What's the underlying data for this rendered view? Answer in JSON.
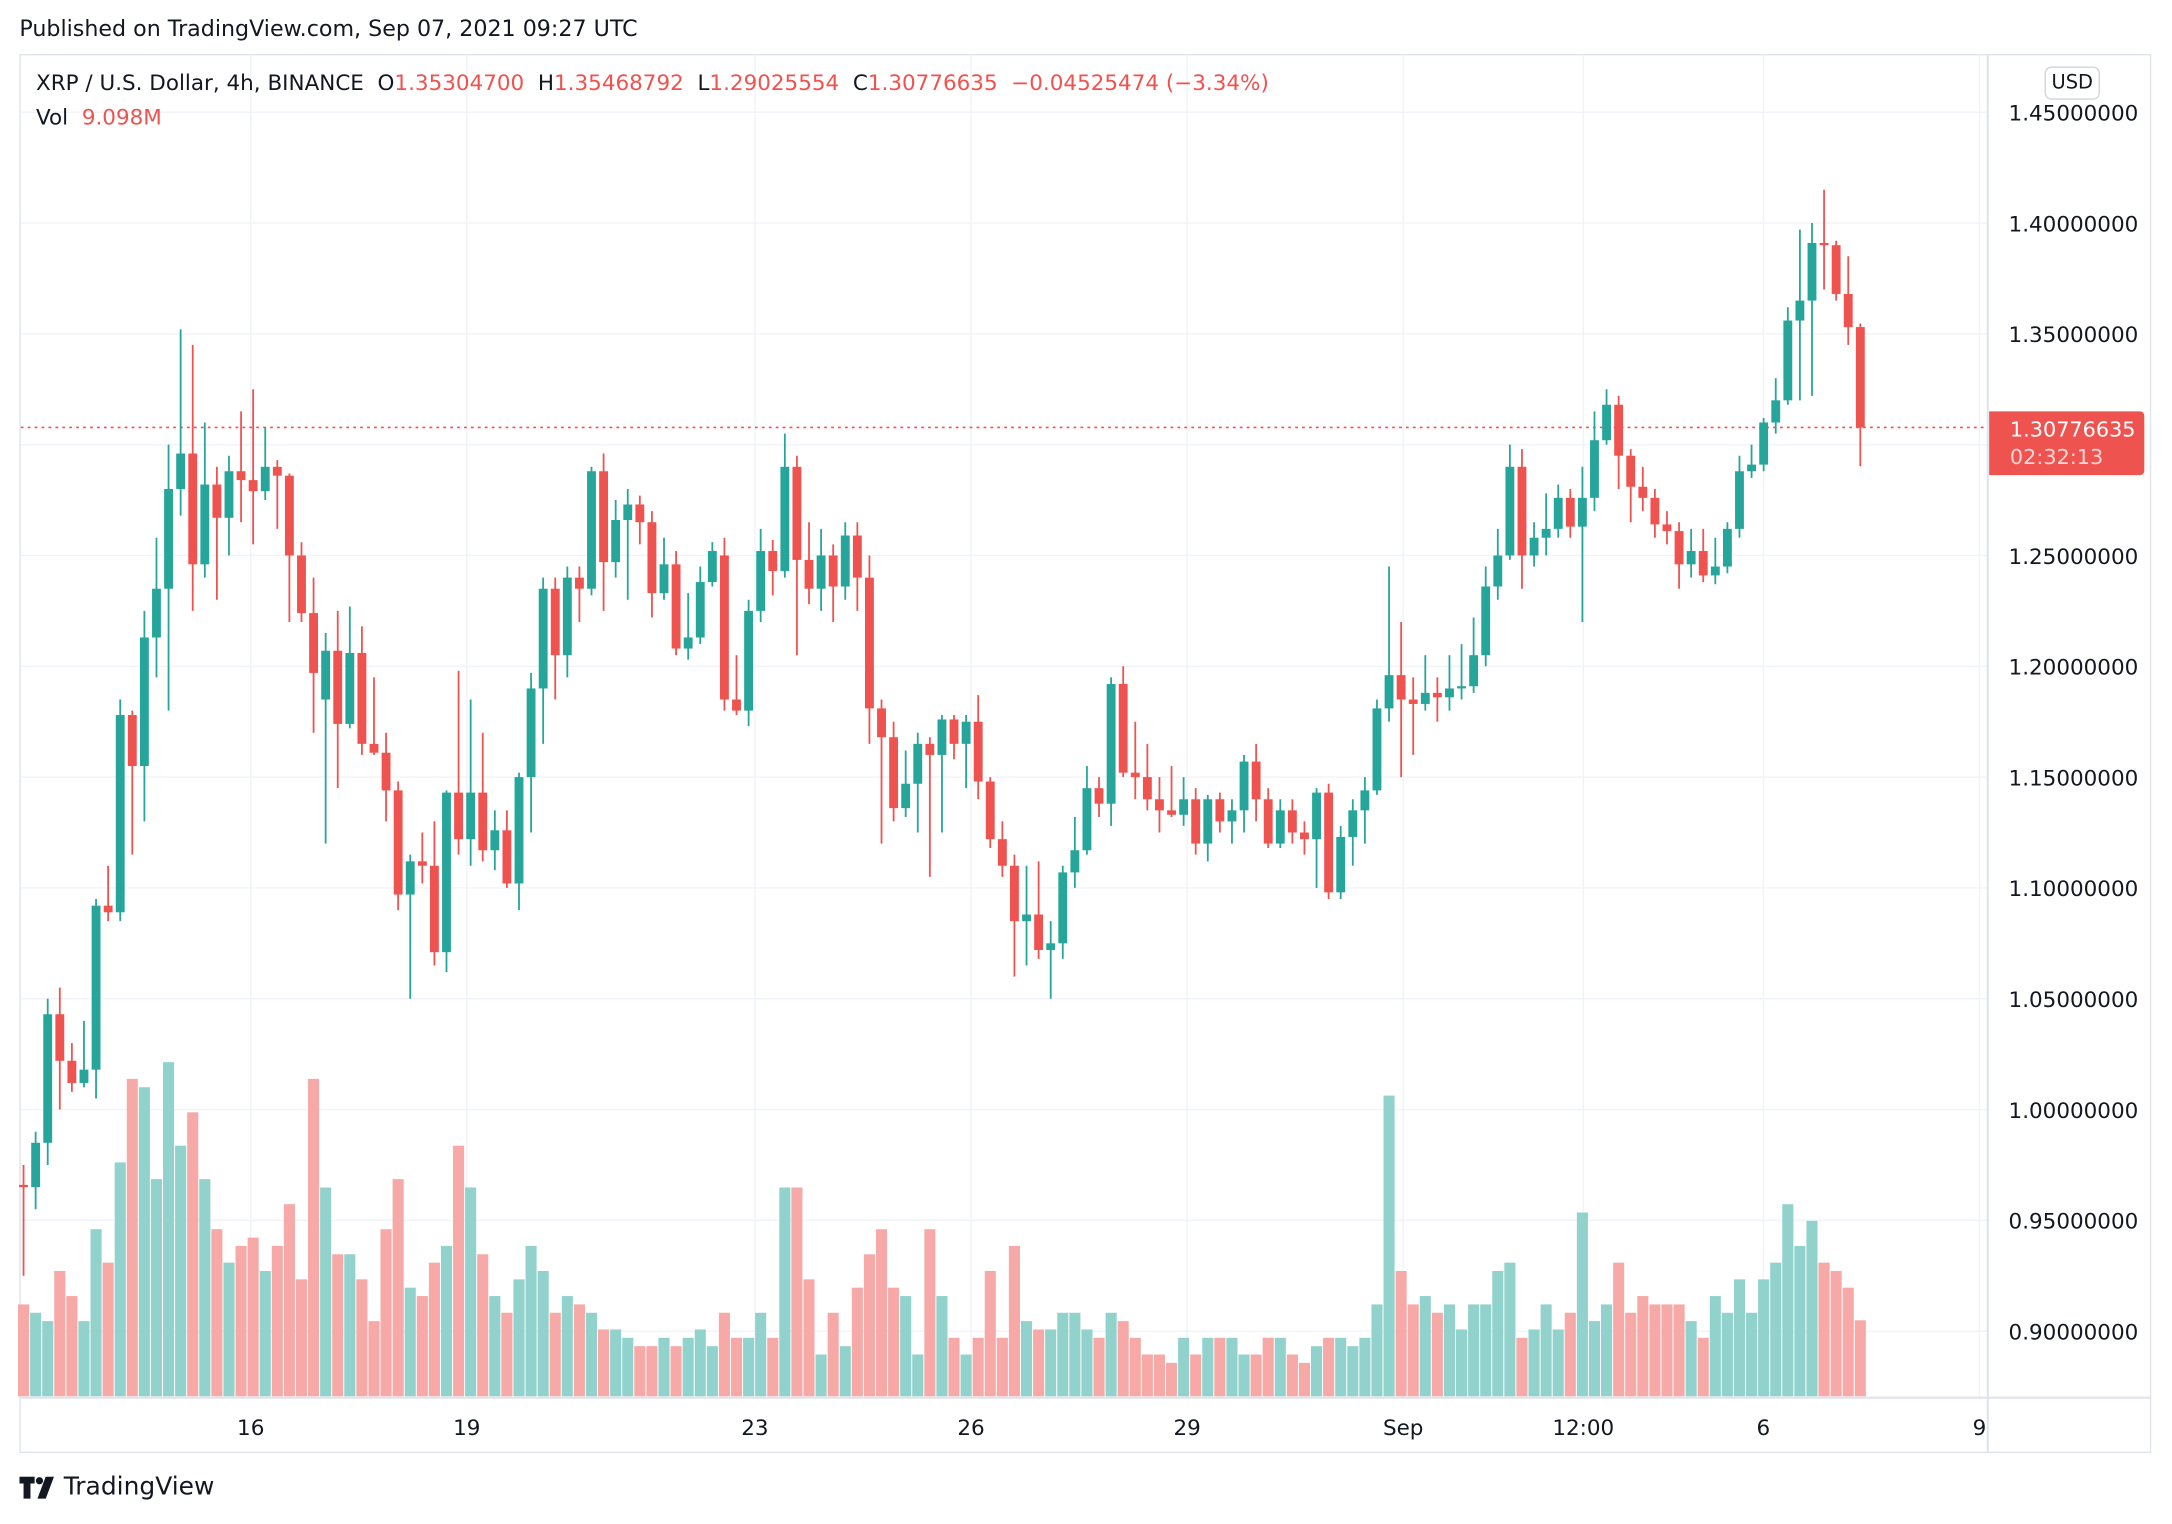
{
  "header": {
    "published": "Published on TradingView.com, Sep 07, 2021 09:27 UTC"
  },
  "legend": {
    "symbol": "XRP / U.S. Dollar, 4h, BINANCE",
    "open_label": "O",
    "open": "1.35304700",
    "high_label": "H",
    "high": "1.35468792",
    "low_label": "L",
    "low": "1.29025554",
    "close_label": "C",
    "close": "1.30776635",
    "change": "−0.04525474 (−3.34%)",
    "vol_label": "Vol",
    "vol": "9.098M"
  },
  "currency_button": "USD",
  "last_price": {
    "price": "1.30776635",
    "countdown": "02:32:13"
  },
  "footer": {
    "brand": "TradingView"
  },
  "colors": {
    "up": "#26a69a",
    "down": "#ef5350",
    "up_volume": "#92d2cc",
    "down_volume": "#f7a9a7",
    "grid": "#f0f3fa"
  },
  "chart_data": {
    "type": "candlestick",
    "timeframe": "4h",
    "ylim": [
      0.875,
      1.465
    ],
    "y_ticks": [
      "1.45000000",
      "1.40000000",
      "1.35000000",
      "1.30000000",
      "1.25000000",
      "1.20000000",
      "1.15000000",
      "1.10000000",
      "1.05000000",
      "1.00000000",
      "0.95000000",
      "0.90000000"
    ],
    "x_ticks": [
      "16",
      "19",
      "23",
      "26",
      "29",
      "Sep",
      "12:00",
      "6",
      "9"
    ],
    "grid": true,
    "last_price_line": 1.30776635,
    "volume_unit": "M",
    "ohlc": [
      [
        0.966,
        0.975,
        0.925,
        0.965
      ],
      [
        0.965,
        0.99,
        0.955,
        0.985
      ],
      [
        0.985,
        1.05,
        0.975,
        1.043
      ],
      [
        1.043,
        1.055,
        1.0,
        1.022
      ],
      [
        1.022,
        1.03,
        1.008,
        1.012
      ],
      [
        1.012,
        1.04,
        1.01,
        1.018
      ],
      [
        1.018,
        1.095,
        1.005,
        1.092
      ],
      [
        1.092,
        1.11,
        1.085,
        1.089
      ],
      [
        1.089,
        1.185,
        1.085,
        1.178
      ],
      [
        1.178,
        1.18,
        1.115,
        1.155
      ],
      [
        1.155,
        1.225,
        1.13,
        1.213
      ],
      [
        1.213,
        1.258,
        1.195,
        1.235
      ],
      [
        1.235,
        1.3,
        1.18,
        1.28
      ],
      [
        1.28,
        1.352,
        1.268,
        1.296
      ],
      [
        1.296,
        1.345,
        1.225,
        1.246
      ],
      [
        1.246,
        1.31,
        1.24,
        1.282
      ],
      [
        1.282,
        1.29,
        1.23,
        1.267
      ],
      [
        1.267,
        1.295,
        1.25,
        1.288
      ],
      [
        1.288,
        1.315,
        1.265,
        1.284
      ],
      [
        1.284,
        1.325,
        1.255,
        1.279
      ],
      [
        1.279,
        1.308,
        1.275,
        1.29
      ],
      [
        1.29,
        1.293,
        1.262,
        1.286
      ],
      [
        1.286,
        1.287,
        1.22,
        1.25
      ],
      [
        1.25,
        1.256,
        1.22,
        1.224
      ],
      [
        1.224,
        1.24,
        1.17,
        1.197
      ],
      [
        1.185,
        1.215,
        1.12,
        1.207
      ],
      [
        1.207,
        1.225,
        1.145,
        1.174
      ],
      [
        1.174,
        1.227,
        1.172,
        1.206
      ],
      [
        1.206,
        1.218,
        1.16,
        1.165
      ],
      [
        1.165,
        1.195,
        1.16,
        1.161
      ],
      [
        1.161,
        1.17,
        1.13,
        1.144
      ],
      [
        1.144,
        1.148,
        1.09,
        1.097
      ],
      [
        1.097,
        1.115,
        1.05,
        1.112
      ],
      [
        1.112,
        1.125,
        1.102,
        1.11
      ],
      [
        1.11,
        1.13,
        1.065,
        1.071
      ],
      [
        1.071,
        1.144,
        1.062,
        1.143
      ],
      [
        1.143,
        1.198,
        1.115,
        1.122
      ],
      [
        1.122,
        1.185,
        1.11,
        1.143
      ],
      [
        1.143,
        1.17,
        1.112,
        1.117
      ],
      [
        1.117,
        1.135,
        1.108,
        1.126
      ],
      [
        1.126,
        1.135,
        1.1,
        1.102
      ],
      [
        1.102,
        1.152,
        1.09,
        1.15
      ],
      [
        1.15,
        1.197,
        1.125,
        1.19
      ],
      [
        1.19,
        1.24,
        1.165,
        1.235
      ],
      [
        1.235,
        1.24,
        1.185,
        1.205
      ],
      [
        1.205,
        1.245,
        1.195,
        1.24
      ],
      [
        1.24,
        1.245,
        1.22,
        1.235
      ],
      [
        1.235,
        1.29,
        1.232,
        1.288
      ],
      [
        1.288,
        1.296,
        1.225,
        1.247
      ],
      [
        1.247,
        1.275,
        1.24,
        1.266
      ],
      [
        1.266,
        1.28,
        1.23,
        1.273
      ],
      [
        1.273,
        1.277,
        1.255,
        1.265
      ],
      [
        1.265,
        1.27,
        1.222,
        1.233
      ],
      [
        1.233,
        1.258,
        1.23,
        1.246
      ],
      [
        1.246,
        1.252,
        1.205,
        1.208
      ],
      [
        1.208,
        1.233,
        1.203,
        1.213
      ],
      [
        1.213,
        1.245,
        1.21,
        1.238
      ],
      [
        1.238,
        1.256,
        1.236,
        1.252
      ],
      [
        1.25,
        1.258,
        1.18,
        1.185
      ],
      [
        1.185,
        1.205,
        1.178,
        1.18
      ],
      [
        1.18,
        1.23,
        1.173,
        1.225
      ],
      [
        1.225,
        1.262,
        1.22,
        1.252
      ],
      [
        1.252,
        1.257,
        1.232,
        1.243
      ],
      [
        1.243,
        1.305,
        1.24,
        1.29
      ],
      [
        1.29,
        1.295,
        1.205,
        1.248
      ],
      [
        1.248,
        1.265,
        1.228,
        1.235
      ],
      [
        1.235,
        1.262,
        1.225,
        1.25
      ],
      [
        1.25,
        1.255,
        1.22,
        1.236
      ],
      [
        1.236,
        1.265,
        1.23,
        1.259
      ],
      [
        1.259,
        1.265,
        1.225,
        1.24
      ],
      [
        1.24,
        1.25,
        1.165,
        1.181
      ],
      [
        1.181,
        1.185,
        1.12,
        1.168
      ],
      [
        1.168,
        1.175,
        1.13,
        1.136
      ],
      [
        1.136,
        1.162,
        1.132,
        1.147
      ],
      [
        1.147,
        1.17,
        1.125,
        1.165
      ],
      [
        1.165,
        1.168,
        1.105,
        1.16
      ],
      [
        1.16,
        1.178,
        1.125,
        1.176
      ],
      [
        1.176,
        1.178,
        1.158,
        1.165
      ],
      [
        1.165,
        1.178,
        1.145,
        1.175
      ],
      [
        1.175,
        1.187,
        1.14,
        1.148
      ],
      [
        1.148,
        1.15,
        1.118,
        1.122
      ],
      [
        1.122,
        1.13,
        1.105,
        1.11
      ],
      [
        1.11,
        1.115,
        1.06,
        1.085
      ],
      [
        1.085,
        1.11,
        1.065,
        1.088
      ],
      [
        1.088,
        1.112,
        1.068,
        1.072
      ],
      [
        1.072,
        1.085,
        1.05,
        1.075
      ],
      [
        1.075,
        1.11,
        1.068,
        1.107
      ],
      [
        1.107,
        1.132,
        1.1,
        1.117
      ],
      [
        1.117,
        1.155,
        1.115,
        1.145
      ],
      [
        1.145,
        1.15,
        1.132,
        1.138
      ],
      [
        1.138,
        1.195,
        1.128,
        1.192
      ],
      [
        1.192,
        1.2,
        1.15,
        1.152
      ],
      [
        1.152,
        1.175,
        1.14,
        1.15
      ],
      [
        1.15,
        1.165,
        1.135,
        1.14
      ],
      [
        1.14,
        1.15,
        1.125,
        1.135
      ],
      [
        1.135,
        1.155,
        1.132,
        1.133
      ],
      [
        1.133,
        1.15,
        1.128,
        1.14
      ],
      [
        1.14,
        1.145,
        1.115,
        1.12
      ],
      [
        1.12,
        1.142,
        1.112,
        1.14
      ],
      [
        1.14,
        1.143,
        1.125,
        1.13
      ],
      [
        1.13,
        1.14,
        1.12,
        1.135
      ],
      [
        1.135,
        1.16,
        1.125,
        1.157
      ],
      [
        1.157,
        1.165,
        1.13,
        1.14
      ],
      [
        1.14,
        1.145,
        1.118,
        1.12
      ],
      [
        1.12,
        1.14,
        1.118,
        1.135
      ],
      [
        1.135,
        1.14,
        1.12,
        1.125
      ],
      [
        1.125,
        1.13,
        1.115,
        1.122
      ],
      [
        1.122,
        1.145,
        1.1,
        1.143
      ],
      [
        1.143,
        1.147,
        1.095,
        1.098
      ],
      [
        1.098,
        1.128,
        1.095,
        1.123
      ],
      [
        1.123,
        1.14,
        1.11,
        1.135
      ],
      [
        1.135,
        1.15,
        1.12,
        1.144
      ],
      [
        1.144,
        1.185,
        1.142,
        1.181
      ],
      [
        1.181,
        1.245,
        1.175,
        1.196
      ],
      [
        1.196,
        1.22,
        1.15,
        1.185
      ],
      [
        1.185,
        1.195,
        1.16,
        1.183
      ],
      [
        1.183,
        1.205,
        1.18,
        1.188
      ],
      [
        1.188,
        1.195,
        1.175,
        1.186
      ],
      [
        1.186,
        1.205,
        1.18,
        1.19
      ],
      [
        1.19,
        1.21,
        1.185,
        1.191
      ],
      [
        1.191,
        1.222,
        1.188,
        1.205
      ],
      [
        1.205,
        1.245,
        1.2,
        1.236
      ],
      [
        1.236,
        1.262,
        1.23,
        1.25
      ],
      [
        1.25,
        1.3,
        1.248,
        1.29
      ],
      [
        1.29,
        1.298,
        1.235,
        1.25
      ],
      [
        1.25,
        1.265,
        1.245,
        1.258
      ],
      [
        1.258,
        1.278,
        1.25,
        1.262
      ],
      [
        1.262,
        1.282,
        1.258,
        1.276
      ],
      [
        1.276,
        1.28,
        1.258,
        1.263
      ],
      [
        1.263,
        1.29,
        1.22,
        1.276
      ],
      [
        1.276,
        1.315,
        1.27,
        1.302
      ],
      [
        1.302,
        1.325,
        1.3,
        1.318
      ],
      [
        1.318,
        1.322,
        1.28,
        1.295
      ],
      [
        1.295,
        1.298,
        1.265,
        1.281
      ],
      [
        1.281,
        1.29,
        1.27,
        1.276
      ],
      [
        1.276,
        1.28,
        1.258,
        1.264
      ],
      [
        1.264,
        1.27,
        1.255,
        1.261
      ],
      [
        1.261,
        1.265,
        1.235,
        1.246
      ],
      [
        1.246,
        1.262,
        1.24,
        1.252
      ],
      [
        1.252,
        1.262,
        1.238,
        1.241
      ],
      [
        1.241,
        1.258,
        1.237,
        1.245
      ],
      [
        1.245,
        1.265,
        1.242,
        1.262
      ],
      [
        1.262,
        1.295,
        1.258,
        1.288
      ],
      [
        1.288,
        1.3,
        1.285,
        1.291
      ],
      [
        1.291,
        1.312,
        1.288,
        1.31
      ],
      [
        1.31,
        1.33,
        1.305,
        1.32
      ],
      [
        1.32,
        1.362,
        1.318,
        1.356
      ],
      [
        1.356,
        1.397,
        1.32,
        1.365
      ],
      [
        1.365,
        1.4,
        1.322,
        1.391
      ],
      [
        1.391,
        1.415,
        1.37,
        1.39
      ],
      [
        1.39,
        1.392,
        1.365,
        1.368
      ],
      [
        1.368,
        1.385,
        1.345,
        1.353
      ],
      [
        1.353047,
        1.35468792,
        1.29025554,
        1.30776635
      ]
    ],
    "volume": [
      11,
      10,
      9,
      15,
      12,
      9,
      20,
      16,
      28,
      38,
      37,
      26,
      40,
      30,
      34,
      26,
      20,
      16,
      18,
      19,
      15,
      18,
      23,
      14,
      38,
      25,
      17,
      17,
      14,
      9,
      20,
      26,
      13,
      12,
      16,
      18,
      30,
      25,
      17,
      12,
      10,
      14,
      18,
      15,
      10,
      12,
      11,
      10,
      8,
      8,
      7,
      6,
      6,
      7,
      6,
      7,
      8,
      6,
      10,
      7,
      7,
      10,
      7,
      25,
      25,
      14,
      5,
      10,
      6,
      13,
      17,
      20,
      13,
      12,
      5,
      20,
      12,
      7,
      5,
      7,
      15,
      7,
      18,
      9,
      8,
      8,
      10,
      10,
      8,
      7,
      10,
      9,
      7,
      5,
      5,
      4,
      7,
      5,
      7,
      7,
      7,
      5,
      5,
      7,
      7,
      5,
      4,
      6,
      7,
      7,
      6,
      7,
      11,
      36,
      15,
      11,
      12,
      10,
      11,
      8,
      11,
      11,
      15,
      16,
      7,
      8,
      11,
      8,
      10,
      22,
      9,
      11,
      16,
      10,
      12,
      11,
      11,
      11,
      9,
      7,
      12,
      10,
      14,
      10,
      14,
      16,
      23,
      18,
      21,
      16,
      15,
      13,
      9.098
    ]
  }
}
